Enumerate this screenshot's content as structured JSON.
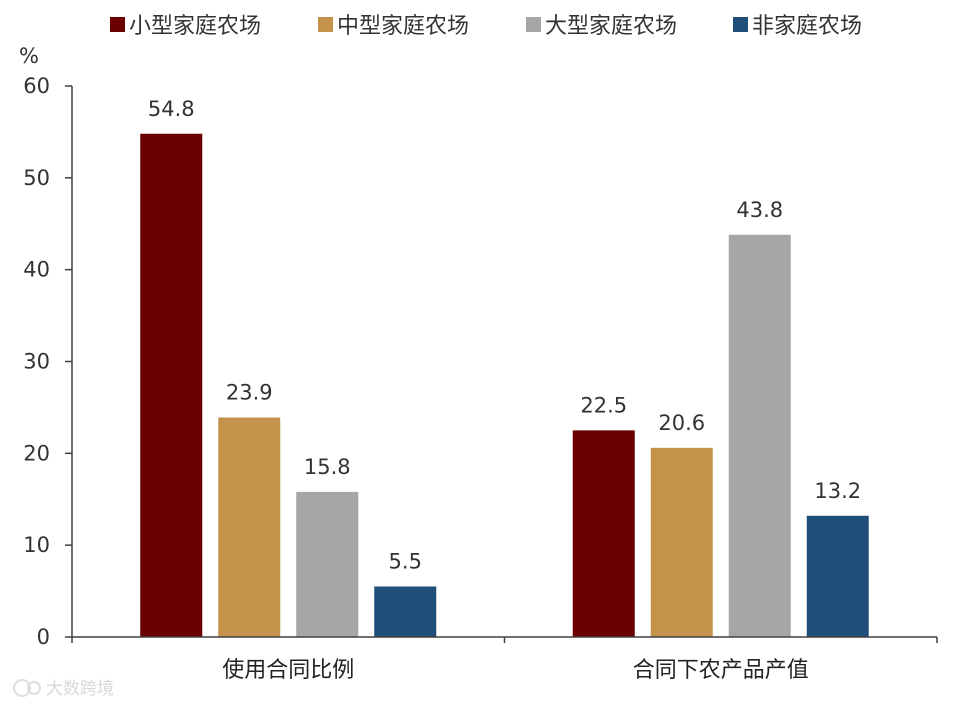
{
  "chart_data": {
    "type": "bar",
    "categories": [
      "使用合同比例",
      "合同下农产品产值"
    ],
    "series": [
      {
        "name": "小型家庭农场",
        "color": "#6a0000",
        "values": [
          54.8,
          22.5
        ]
      },
      {
        "name": "中型家庭农场",
        "color": "#c4924a",
        "values": [
          23.9,
          20.6
        ]
      },
      {
        "name": "大型家庭农场",
        "color": "#a6a6a6",
        "values": [
          15.8,
          43.8
        ]
      },
      {
        "name": "非家庭农场",
        "color": "#1f4e79",
        "values": [
          5.5,
          13.2
        ]
      }
    ],
    "ylabel": "%",
    "ylim": [
      0,
      60
    ],
    "yticks": [
      0,
      10,
      20,
      30,
      40,
      50,
      60
    ],
    "grid": false,
    "legend_position": "top"
  },
  "watermark": "大数跨境"
}
